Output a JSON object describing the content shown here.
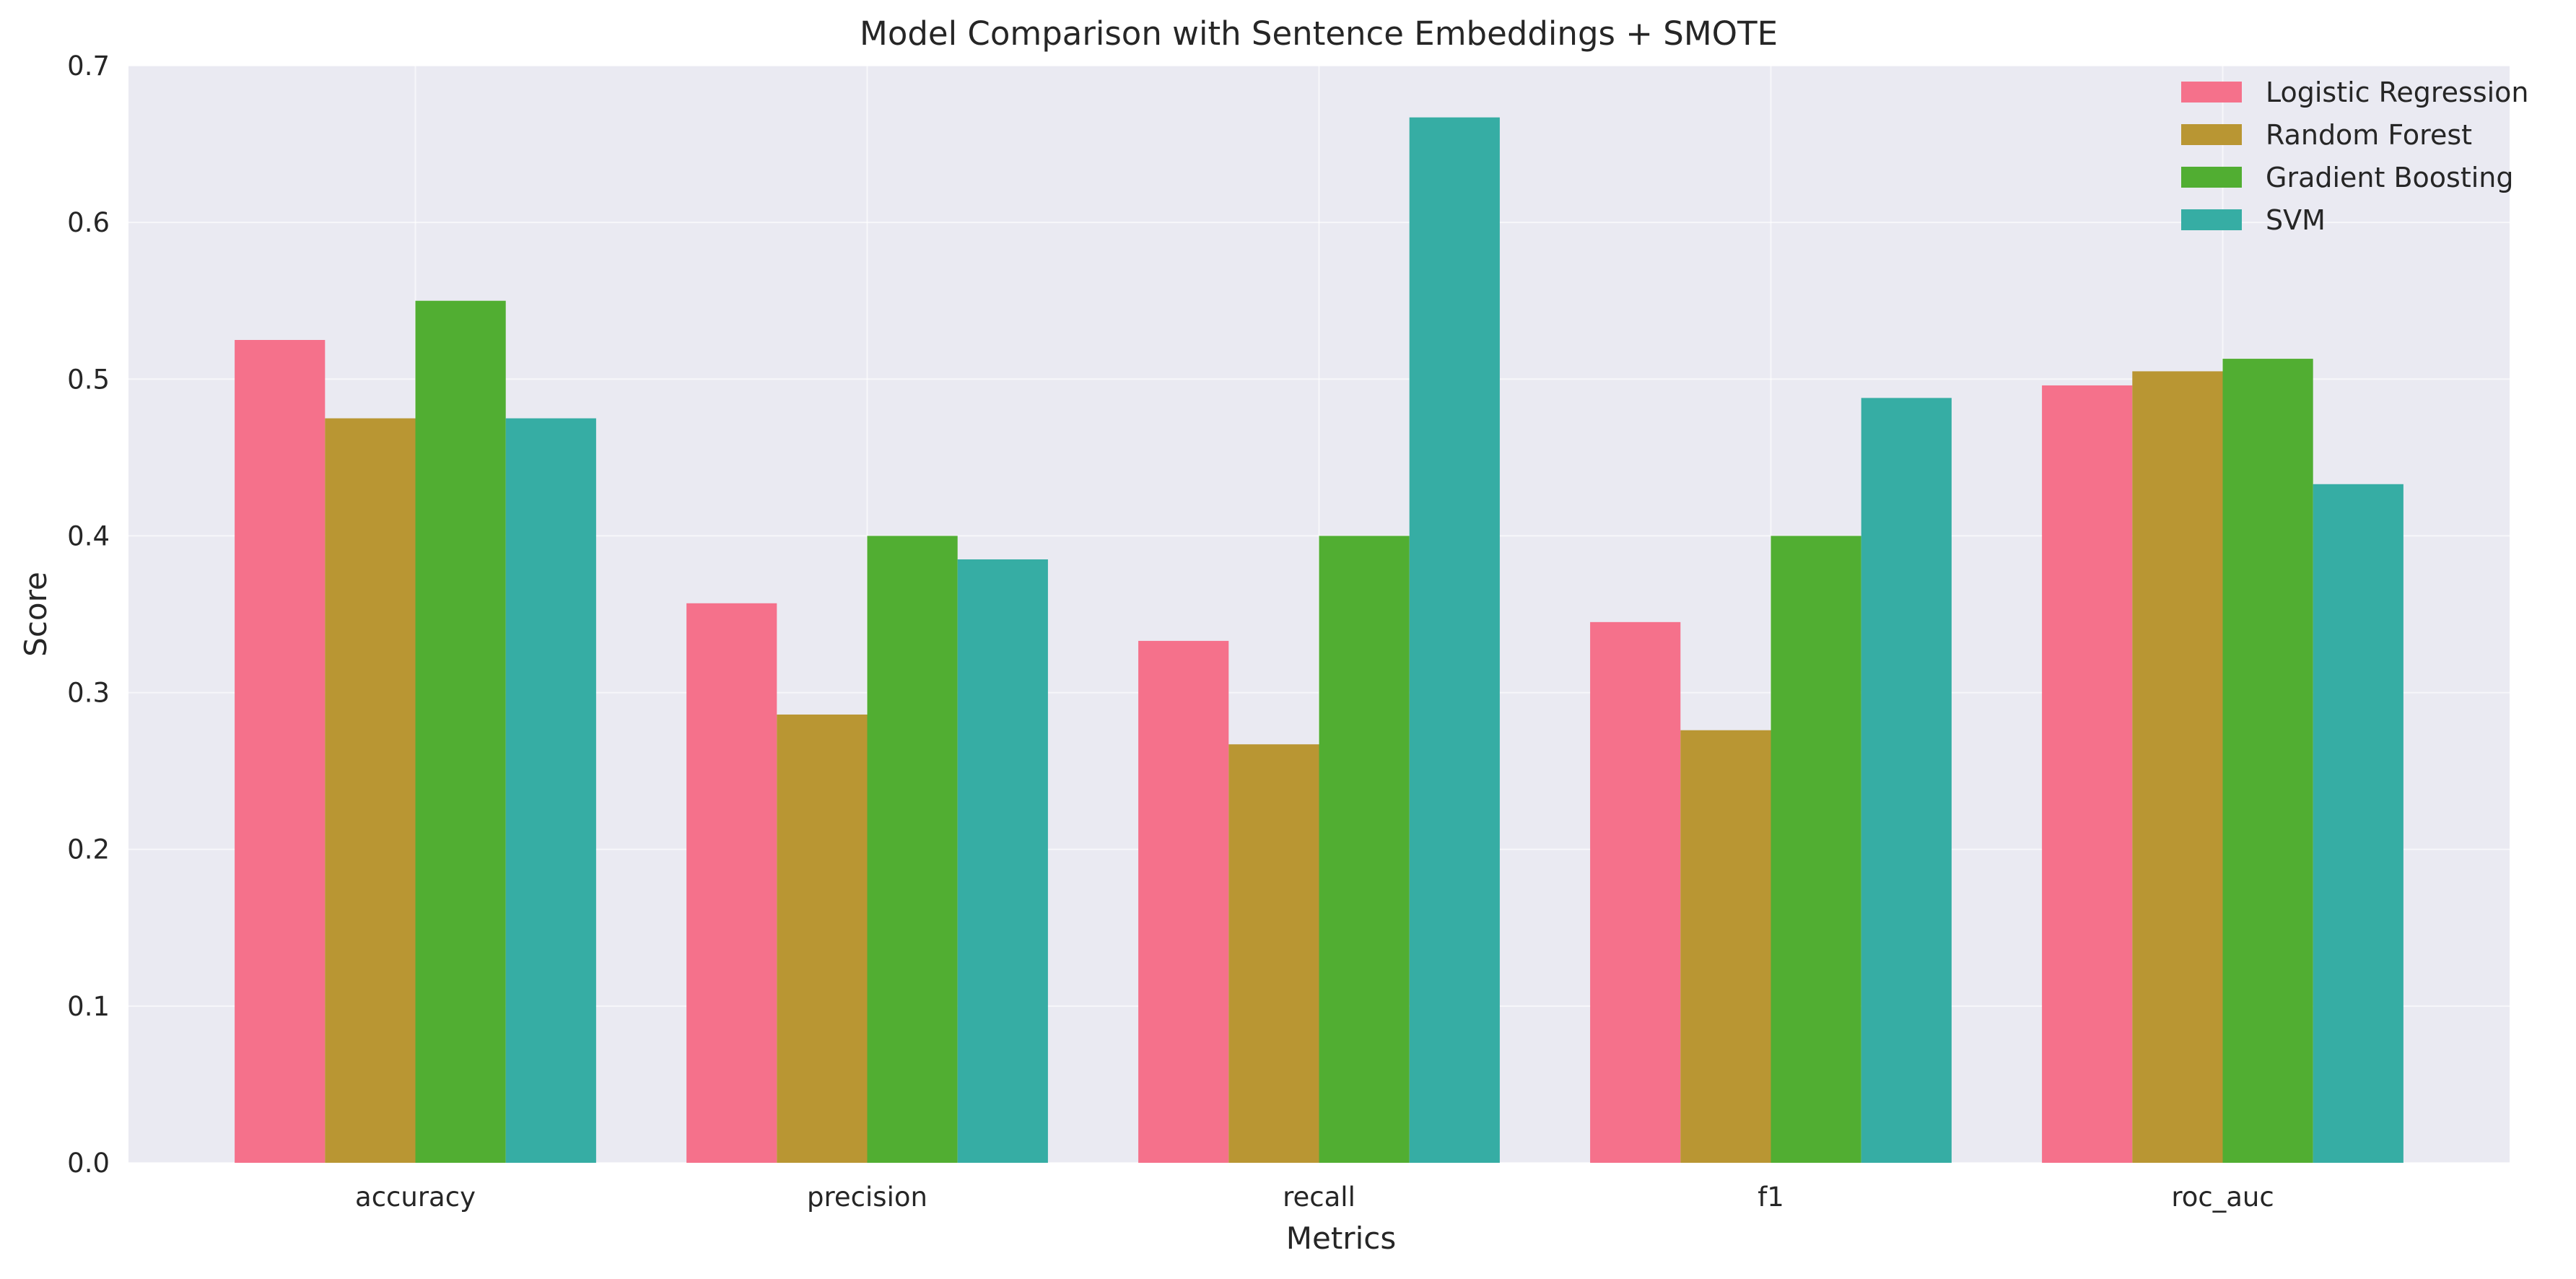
{
  "chart_data": {
    "type": "bar",
    "title": "Model Comparison with Sentence Embeddings + SMOTE",
    "xlabel": "Metrics",
    "ylabel": "Score",
    "categories": [
      "accuracy",
      "precision",
      "recall",
      "f1",
      "roc_auc"
    ],
    "yticks": [
      "0.0",
      "0.1",
      "0.2",
      "0.3",
      "0.4",
      "0.5",
      "0.6",
      "0.7"
    ],
    "ylim": [
      0,
      0.7
    ],
    "grid": true,
    "legend_position": "top-right",
    "series": [
      {
        "name": "Logistic Regression",
        "color": "#f5718b",
        "values": [
          0.525,
          0.357,
          0.333,
          0.345,
          0.496
        ]
      },
      {
        "name": "Random Forest",
        "color": "#b99633",
        "values": [
          0.475,
          0.286,
          0.267,
          0.276,
          0.505
        ]
      },
      {
        "name": "Gradient Boosting",
        "color": "#51ae32",
        "values": [
          0.55,
          0.4,
          0.4,
          0.4,
          0.513
        ]
      },
      {
        "name": "SVM",
        "color": "#36ada4",
        "values": [
          0.475,
          0.385,
          0.667,
          0.488,
          0.433
        ]
      }
    ]
  }
}
